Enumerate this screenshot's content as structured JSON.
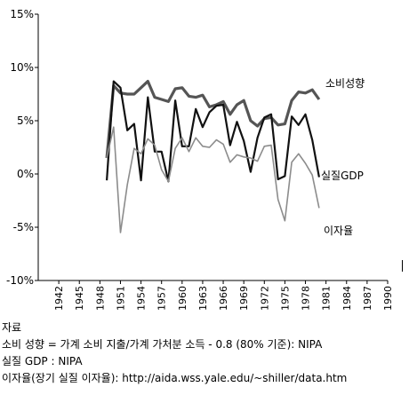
{
  "chart_data": {
    "type": "line",
    "title": "",
    "xlabel": "",
    "ylabel": "",
    "xlim": [
      1939,
      1990
    ],
    "ylim": [
      -10,
      15
    ],
    "x_ticks": [
      "1942",
      "1945",
      "1948",
      "1951",
      "1954",
      "1957",
      "1960",
      "1963",
      "1966",
      "1969",
      "1972",
      "1975",
      "1978",
      "1981",
      "1984",
      "1987",
      "1990"
    ],
    "y_ticks": [
      "15%",
      "10%",
      "5%",
      "0%",
      "-5%",
      "-10%"
    ],
    "y_tick_values": [
      15,
      10,
      5,
      0,
      -5,
      -10
    ],
    "grid": false,
    "legend": "inline labels at right end of each series",
    "series": [
      {
        "name": "소비성향",
        "color": "#555555",
        "x": [
          1949,
          1950,
          1951,
          1952,
          1953,
          1954,
          1955,
          1956,
          1957,
          1958,
          1959,
          1960,
          1961,
          1962,
          1963,
          1964,
          1965,
          1966,
          1967,
          1968,
          1969,
          1970,
          1971,
          1972,
          1973,
          1974,
          1975,
          1976,
          1977,
          1978,
          1979,
          1980
        ],
        "y": [
          1.5,
          8.3,
          7.6,
          7.5,
          7.5,
          8.1,
          8.7,
          7.2,
          7.0,
          6.8,
          8.0,
          8.1,
          7.3,
          7.2,
          7.4,
          6.3,
          6.5,
          6.8,
          5.6,
          6.5,
          6.9,
          5.0,
          4.5,
          5.2,
          5.3,
          4.6,
          4.7,
          6.9,
          7.7,
          7.6,
          7.9,
          7.0
        ]
      },
      {
        "name": "실질GDP",
        "color": "#111111",
        "x": [
          1949,
          1950,
          1951,
          1952,
          1953,
          1954,
          1955,
          1956,
          1957,
          1958,
          1959,
          1960,
          1961,
          1962,
          1963,
          1964,
          1965,
          1966,
          1967,
          1968,
          1969,
          1970,
          1971,
          1972,
          1973,
          1974,
          1975,
          1976,
          1977,
          1978,
          1979,
          1980
        ],
        "y": [
          -0.6,
          8.7,
          8.1,
          4.1,
          4.7,
          -0.6,
          7.2,
          2.1,
          2.1,
          -0.7,
          6.9,
          2.6,
          2.6,
          6.1,
          4.4,
          5.8,
          6.4,
          6.5,
          2.7,
          4.9,
          3.1,
          0.2,
          3.4,
          5.3,
          5.6,
          -0.5,
          -0.2,
          5.4,
          4.6,
          5.6,
          3.2,
          -0.3
        ]
      },
      {
        "name": "이자율",
        "color": "#8c8c8c",
        "x": [
          1949,
          1950,
          1951,
          1952,
          1953,
          1954,
          1955,
          1956,
          1957,
          1958,
          1959,
          1960,
          1961,
          1962,
          1963,
          1964,
          1965,
          1966,
          1967,
          1968,
          1969,
          1970,
          1971,
          1972,
          1973,
          1974,
          1975,
          1976,
          1977,
          1978,
          1979,
          1980
        ],
        "y": [
          1.5,
          4.4,
          -5.5,
          -1.0,
          2.4,
          1.9,
          3.3,
          2.7,
          0.4,
          -0.7,
          2.4,
          3.4,
          2.1,
          3.4,
          2.6,
          2.5,
          3.2,
          2.8,
          1.1,
          1.8,
          1.6,
          1.5,
          1.2,
          2.6,
          2.7,
          -2.4,
          -4.4,
          1.1,
          1.9,
          1.0,
          -0.1,
          -3.2
        ]
      }
    ]
  },
  "source": {
    "heading": "자료",
    "line1": "소비 성향 = 가계 소비 지출/가계 가처분 소득 - 0.8 (80% 기준): NIPA",
    "line2": "실질 GDP : NIPA",
    "line3": "이자율(장기 실질 이자율): http://aida.wss.yale.edu/~shiller/data.htm"
  }
}
